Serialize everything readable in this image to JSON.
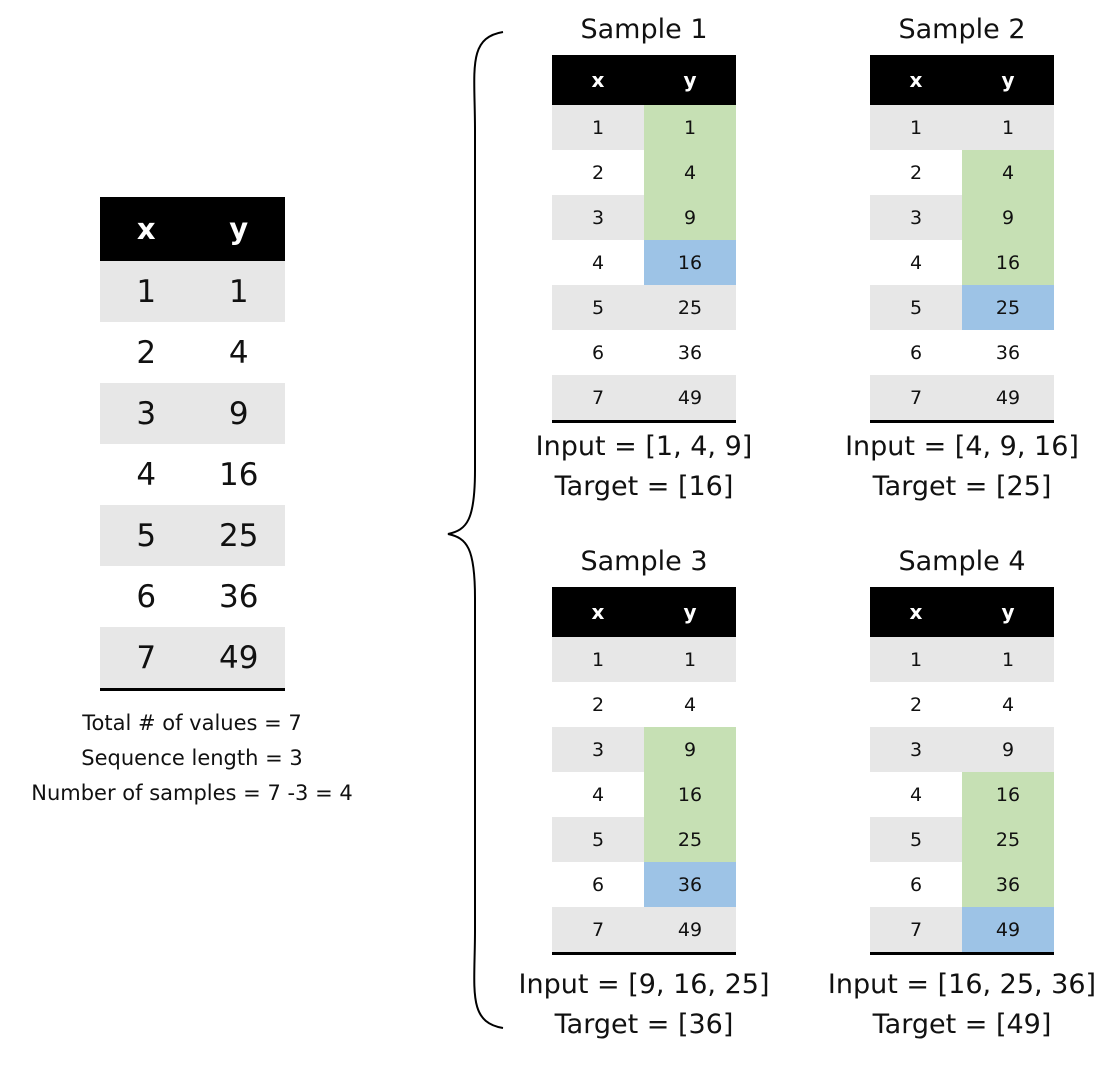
{
  "main_table": {
    "headers": [
      "x",
      "y"
    ],
    "rows": [
      [
        "1",
        "1"
      ],
      [
        "2",
        "4"
      ],
      [
        "3",
        "9"
      ],
      [
        "4",
        "16"
      ],
      [
        "5",
        "25"
      ],
      [
        "6",
        "36"
      ],
      [
        "7",
        "49"
      ]
    ]
  },
  "notes": {
    "total": "Total # of values = 7",
    "seq_len": "Sequence length = 3",
    "num_samples": "Number of samples = 7 -3 = 4"
  },
  "samples": [
    {
      "title": "Sample 1",
      "headers": [
        "x",
        "y"
      ],
      "rows": [
        [
          "1",
          "1"
        ],
        [
          "2",
          "4"
        ],
        [
          "3",
          "9"
        ],
        [
          "4",
          "16"
        ],
        [
          "5",
          "25"
        ],
        [
          "6",
          "36"
        ],
        [
          "7",
          "49"
        ]
      ],
      "input_rows": [
        1,
        2,
        3
      ],
      "target_row": 4,
      "input_label": "Input = [1, 4, 9]",
      "target_label": "Target = [16]"
    },
    {
      "title": "Sample 2",
      "headers": [
        "x",
        "y"
      ],
      "rows": [
        [
          "1",
          "1"
        ],
        [
          "2",
          "4"
        ],
        [
          "3",
          "9"
        ],
        [
          "4",
          "16"
        ],
        [
          "5",
          "25"
        ],
        [
          "6",
          "36"
        ],
        [
          "7",
          "49"
        ]
      ],
      "input_rows": [
        2,
        3,
        4
      ],
      "target_row": 5,
      "input_label": "Input = [4, 9, 16]",
      "target_label": "Target = [25]"
    },
    {
      "title": "Sample 3",
      "headers": [
        "x",
        "y"
      ],
      "rows": [
        [
          "1",
          "1"
        ],
        [
          "2",
          "4"
        ],
        [
          "3",
          "9"
        ],
        [
          "4",
          "16"
        ],
        [
          "5",
          "25"
        ],
        [
          "6",
          "36"
        ],
        [
          "7",
          "49"
        ]
      ],
      "input_rows": [
        3,
        4,
        5
      ],
      "target_row": 6,
      "input_label": "Input = [9, 16, 25]",
      "target_label": "Target = [36]"
    },
    {
      "title": "Sample 4",
      "headers": [
        "x",
        "y"
      ],
      "rows": [
        [
          "1",
          "1"
        ],
        [
          "2",
          "4"
        ],
        [
          "3",
          "9"
        ],
        [
          "4",
          "16"
        ],
        [
          "5",
          "25"
        ],
        [
          "6",
          "36"
        ],
        [
          "7",
          "49"
        ]
      ],
      "input_rows": [
        4,
        5,
        6
      ],
      "target_row": 7,
      "input_label": "Input = [16, 25, 36]",
      "target_label": "Target = [49]"
    }
  ],
  "colors": {
    "header_bg": "#000000",
    "header_text": "#ffffff",
    "row_stripe": "#e7e7e7",
    "input_highlight": "#c6e0b4",
    "target_highlight": "#9dc3e6"
  }
}
